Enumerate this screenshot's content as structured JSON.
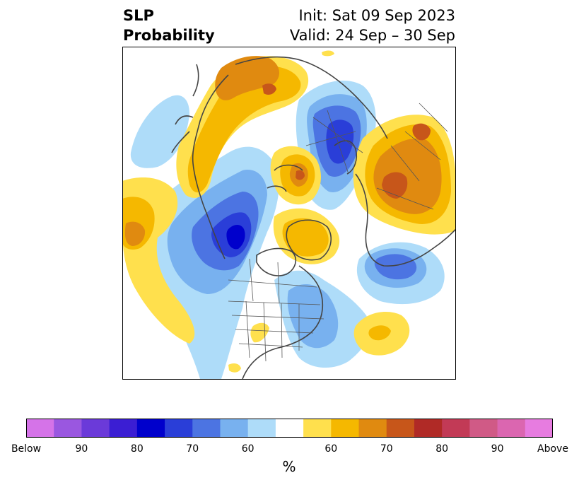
{
  "title": {
    "left_line1": "SLP",
    "left_line2": "Probability",
    "right_line1": "Init: Sat 09 Sep 2023",
    "right_line2": "Valid: 24 Sep – 30 Sep"
  },
  "colorbar": {
    "unit": "%",
    "colors": [
      "#d573e8",
      "#9a57e0",
      "#6b3ad9",
      "#3b1ed3",
      "#0000cc",
      "#2a3ed8",
      "#4c74e2",
      "#78b1ef",
      "#aedcf9",
      "#ffffff",
      "#ffe04d",
      "#f5b800",
      "#e08a10",
      "#c7561a",
      "#b02a26",
      "#c23a56",
      "#d05a86",
      "#db66b0",
      "#e77ce0"
    ],
    "ticks": [
      "Below",
      "90",
      "80",
      "70",
      "60",
      "60",
      "70",
      "80",
      "90",
      "Above"
    ],
    "tick_bins": [
      0,
      2,
      4,
      6,
      8,
      11,
      13,
      15,
      17,
      19
    ]
  },
  "palette": {
    "below_light": "#aedcf9",
    "below_mid": "#78b1ef",
    "below_strong": "#4c74e2",
    "below_deep": "#2a3ed8",
    "below_max": "#0000cc",
    "above_light": "#ffe04d",
    "above_mid": "#f5b800",
    "above_strong": "#e08a10",
    "above_deep": "#c7561a",
    "coast": "#444444"
  }
}
